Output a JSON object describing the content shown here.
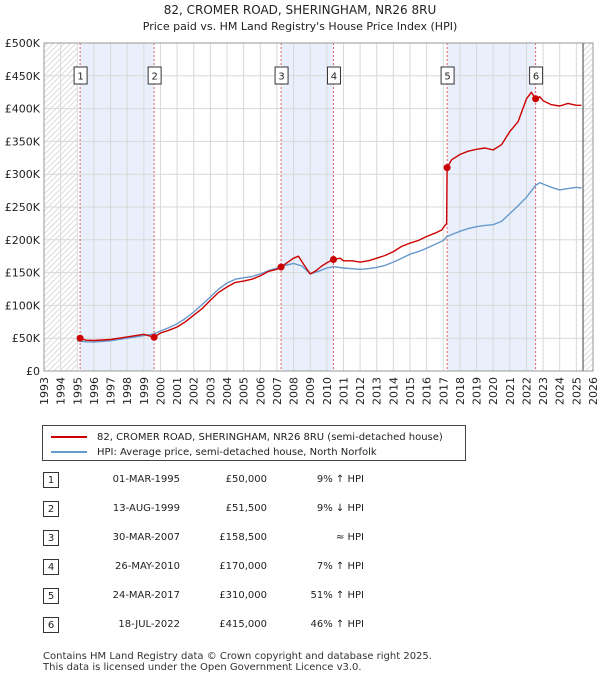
{
  "chart_data": {
    "type": "line",
    "title": "82, CROMER ROAD, SHERINGHAM, NR26 8RU",
    "subtitle": "Price paid vs. HM Land Registry's House Price Index (HPI)",
    "xlim": [
      1993,
      2026
    ],
    "ylim": [
      0,
      500000
    ],
    "x_ticks": [
      "1993",
      "1994",
      "1995",
      "1996",
      "1997",
      "1998",
      "1999",
      "2000",
      "2001",
      "2002",
      "2003",
      "2004",
      "2005",
      "2006",
      "2007",
      "2008",
      "2009",
      "2010",
      "2011",
      "2012",
      "2013",
      "2014",
      "2015",
      "2016",
      "2017",
      "2018",
      "2019",
      "2020",
      "2021",
      "2022",
      "2023",
      "2024",
      "2025",
      "2026"
    ],
    "y_ticks": [
      {
        "value": 0,
        "label": "£0"
      },
      {
        "value": 50000,
        "label": "£50K"
      },
      {
        "value": 100000,
        "label": "£100K"
      },
      {
        "value": 150000,
        "label": "£150K"
      },
      {
        "value": 200000,
        "label": "£200K"
      },
      {
        "value": 250000,
        "label": "£250K"
      },
      {
        "value": 300000,
        "label": "£300K"
      },
      {
        "value": 350000,
        "label": "£350K"
      },
      {
        "value": 400000,
        "label": "£400K"
      },
      {
        "value": 450000,
        "label": "£450K"
      },
      {
        "value": 500000,
        "label": "£500K"
      }
    ],
    "grid": true,
    "data_start": 1995.0,
    "data_end": 2025.4,
    "shaded_bands": [
      [
        1995.17,
        1999.62
      ],
      [
        2007.25,
        2010.4
      ],
      [
        2017.23,
        2022.55
      ]
    ],
    "series": [
      {
        "name": "property",
        "color": "#cc0000",
        "points": [
          [
            1995.0,
            51000
          ],
          [
            1995.17,
            50000
          ],
          [
            1995.5,
            47000
          ],
          [
            1996.0,
            46500
          ],
          [
            1997.0,
            48000
          ],
          [
            1998.0,
            52000
          ],
          [
            1999.0,
            56000
          ],
          [
            1999.62,
            51500
          ],
          [
            2000.0,
            58000
          ],
          [
            2000.5,
            62000
          ],
          [
            2001.0,
            67000
          ],
          [
            2001.5,
            75000
          ],
          [
            2002.0,
            85000
          ],
          [
            2002.5,
            95000
          ],
          [
            2003.0,
            108000
          ],
          [
            2003.5,
            120000
          ],
          [
            2004.0,
            128000
          ],
          [
            2004.5,
            135000
          ],
          [
            2005.0,
            137000
          ],
          [
            2005.5,
            140000
          ],
          [
            2006.0,
            145000
          ],
          [
            2006.5,
            152000
          ],
          [
            2007.0,
            155000
          ],
          [
            2007.25,
            158500
          ],
          [
            2007.5,
            163000
          ],
          [
            2008.0,
            172000
          ],
          [
            2008.3,
            175000
          ],
          [
            2008.6,
            163000
          ],
          [
            2009.0,
            148000
          ],
          [
            2009.3,
            152000
          ],
          [
            2009.7,
            160000
          ],
          [
            2010.0,
            165000
          ],
          [
            2010.4,
            170000
          ],
          [
            2010.8,
            172000
          ],
          [
            2011.0,
            168000
          ],
          [
            2011.5,
            168000
          ],
          [
            2012.0,
            166000
          ],
          [
            2012.5,
            168000
          ],
          [
            2013.0,
            172000
          ],
          [
            2013.5,
            176000
          ],
          [
            2014.0,
            182000
          ],
          [
            2014.5,
            190000
          ],
          [
            2015.0,
            195000
          ],
          [
            2015.5,
            199000
          ],
          [
            2016.0,
            205000
          ],
          [
            2016.5,
            210000
          ],
          [
            2016.9,
            215000
          ],
          [
            2017.2,
            225000
          ],
          [
            2017.23,
            310000
          ],
          [
            2017.5,
            322000
          ],
          [
            2018.0,
            330000
          ],
          [
            2018.5,
            335000
          ],
          [
            2019.0,
            338000
          ],
          [
            2019.5,
            340000
          ],
          [
            2020.0,
            337000
          ],
          [
            2020.5,
            345000
          ],
          [
            2021.0,
            365000
          ],
          [
            2021.5,
            380000
          ],
          [
            2022.0,
            415000
          ],
          [
            2022.3,
            425000
          ],
          [
            2022.55,
            415000
          ],
          [
            2022.8,
            418000
          ],
          [
            2023.0,
            412000
          ],
          [
            2023.5,
            406000
          ],
          [
            2024.0,
            404000
          ],
          [
            2024.5,
            408000
          ],
          [
            2025.0,
            405000
          ],
          [
            2025.3,
            405000
          ]
        ]
      },
      {
        "name": "hpi",
        "color": "#6699cc",
        "points": [
          [
            1995.0,
            46000
          ],
          [
            1995.5,
            44500
          ],
          [
            1996.0,
            44000
          ],
          [
            1997.0,
            46000
          ],
          [
            1998.0,
            50000
          ],
          [
            1999.0,
            54000
          ],
          [
            1999.62,
            56500
          ],
          [
            2000.0,
            61000
          ],
          [
            2000.5,
            66000
          ],
          [
            2001.0,
            72000
          ],
          [
            2001.5,
            80000
          ],
          [
            2002.0,
            90000
          ],
          [
            2002.5,
            101000
          ],
          [
            2003.0,
            113000
          ],
          [
            2003.5,
            125000
          ],
          [
            2004.0,
            134000
          ],
          [
            2004.5,
            140000
          ],
          [
            2005.0,
            142000
          ],
          [
            2005.5,
            144000
          ],
          [
            2006.0,
            148000
          ],
          [
            2006.5,
            153000
          ],
          [
            2007.0,
            157000
          ],
          [
            2007.25,
            158500
          ],
          [
            2007.5,
            161000
          ],
          [
            2008.0,
            164000
          ],
          [
            2008.5,
            160000
          ],
          [
            2009.0,
            148000
          ],
          [
            2009.5,
            152000
          ],
          [
            2010.0,
            157000
          ],
          [
            2010.4,
            159000
          ],
          [
            2011.0,
            157000
          ],
          [
            2011.5,
            156000
          ],
          [
            2012.0,
            155000
          ],
          [
            2012.5,
            156000
          ],
          [
            2013.0,
            158000
          ],
          [
            2013.5,
            161000
          ],
          [
            2014.0,
            166000
          ],
          [
            2014.5,
            172000
          ],
          [
            2015.0,
            178000
          ],
          [
            2015.5,
            182000
          ],
          [
            2016.0,
            187000
          ],
          [
            2016.5,
            193000
          ],
          [
            2017.0,
            199000
          ],
          [
            2017.23,
            205000
          ],
          [
            2017.5,
            208000
          ],
          [
            2018.0,
            213000
          ],
          [
            2018.5,
            217000
          ],
          [
            2019.0,
            220000
          ],
          [
            2019.5,
            222000
          ],
          [
            2020.0,
            223000
          ],
          [
            2020.5,
            228000
          ],
          [
            2021.0,
            240000
          ],
          [
            2021.5,
            252000
          ],
          [
            2022.0,
            265000
          ],
          [
            2022.55,
            283000
          ],
          [
            2022.8,
            287000
          ],
          [
            2023.0,
            285000
          ],
          [
            2023.5,
            280000
          ],
          [
            2024.0,
            276000
          ],
          [
            2024.5,
            278000
          ],
          [
            2025.0,
            280000
          ],
          [
            2025.3,
            279000
          ]
        ]
      }
    ],
    "markers": [
      {
        "label": "1",
        "x": 1995.17,
        "y": 50000
      },
      {
        "label": "2",
        "x": 1999.62,
        "y": 51500
      },
      {
        "label": "3",
        "x": 2007.25,
        "y": 158500
      },
      {
        "label": "4",
        "x": 2010.4,
        "y": 170000
      },
      {
        "label": "5",
        "x": 2017.23,
        "y": 310000
      },
      {
        "label": "6",
        "x": 2022.55,
        "y": 415000
      }
    ]
  },
  "legend": {
    "property_label": "82, CROMER ROAD, SHERINGHAM, NR26 8RU (semi-detached house)",
    "hpi_label": "HPI: Average price, semi-detached house, North Norfolk",
    "property_color": "#cc0000",
    "hpi_color": "#6699cc"
  },
  "transactions": [
    {
      "num": "1",
      "date": "01-MAR-1995",
      "price": "£50,000",
      "hpi": "9% ↑ HPI"
    },
    {
      "num": "2",
      "date": "13-AUG-1999",
      "price": "£51,500",
      "hpi": "9% ↓ HPI"
    },
    {
      "num": "3",
      "date": "30-MAR-2007",
      "price": "£158,500",
      "hpi": "≈ HPI"
    },
    {
      "num": "4",
      "date": "26-MAY-2010",
      "price": "£170,000",
      "hpi": "7% ↑ HPI"
    },
    {
      "num": "5",
      "date": "24-MAR-2017",
      "price": "£310,000",
      "hpi": "51% ↑ HPI"
    },
    {
      "num": "6",
      "date": "18-JUL-2022",
      "price": "£415,000",
      "hpi": "46% ↑ HPI"
    }
  ],
  "footer": {
    "line1": "Contains HM Land Registry data © Crown copyright and database right 2025.",
    "line2": "This data is licensed under the Open Government Licence v3.0."
  }
}
